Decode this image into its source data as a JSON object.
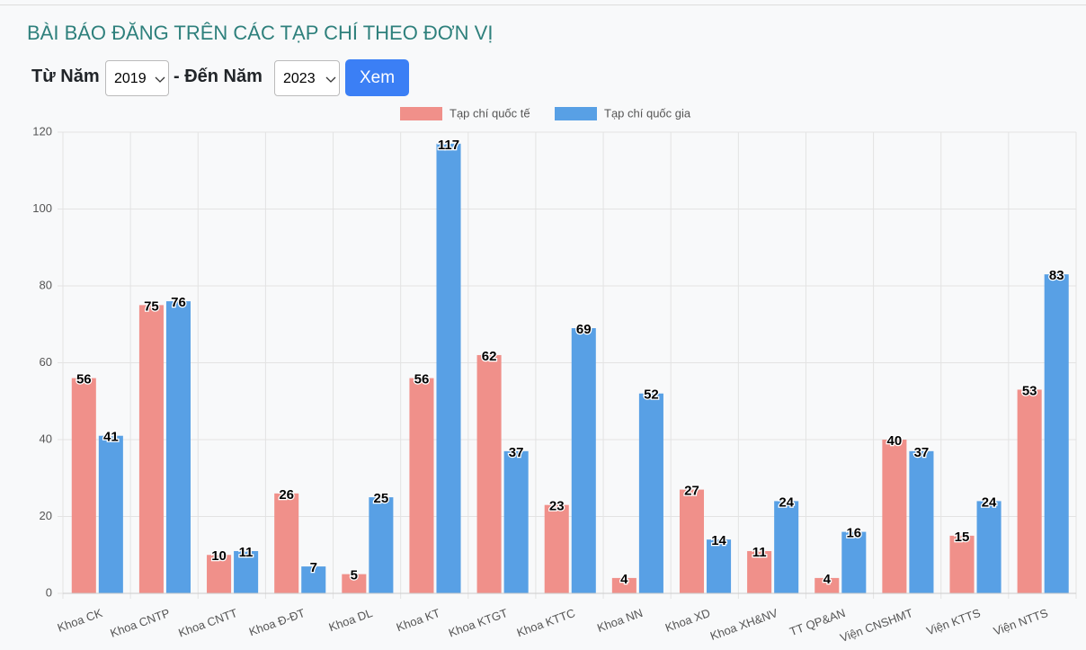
{
  "page": {
    "title": "BÀI BÁO ĐĂNG TRÊN CÁC TẠP CHÍ THEO ĐƠN VỊ",
    "from_label": "Từ Năm",
    "from_value": "2019",
    "to_label": "- Đến Năm",
    "to_value": "2023",
    "button": "Xem"
  },
  "chart_data": {
    "type": "bar",
    "categories": [
      "Khoa CK",
      "Khoa CNTP",
      "Khoa CNTT",
      "Khoa Đ-ĐT",
      "Khoa DL",
      "Khoa KT",
      "Khoa KTGT",
      "Khoa KTTC",
      "Khoa NN",
      "Khoa XD",
      "Khoa XH&NV",
      "TT QP&AN",
      "Viện CNSHMT",
      "Viện KTTS",
      "Viện NTTS"
    ],
    "series": [
      {
        "name": "Tạp chí quốc tế",
        "color": "#f0908a",
        "values": [
          56,
          75,
          10,
          26,
          5,
          56,
          62,
          23,
          4,
          27,
          11,
          4,
          40,
          15,
          53
        ]
      },
      {
        "name": "Tạp chí quốc gia",
        "color": "#58a0e5",
        "values": [
          41,
          76,
          11,
          7,
          25,
          117,
          37,
          69,
          52,
          14,
          24,
          16,
          37,
          24,
          83
        ]
      }
    ],
    "ylim": [
      0,
      120
    ],
    "yticks": [
      0,
      20,
      40,
      60,
      80,
      100,
      120
    ],
    "grid": true,
    "legend": "top"
  }
}
